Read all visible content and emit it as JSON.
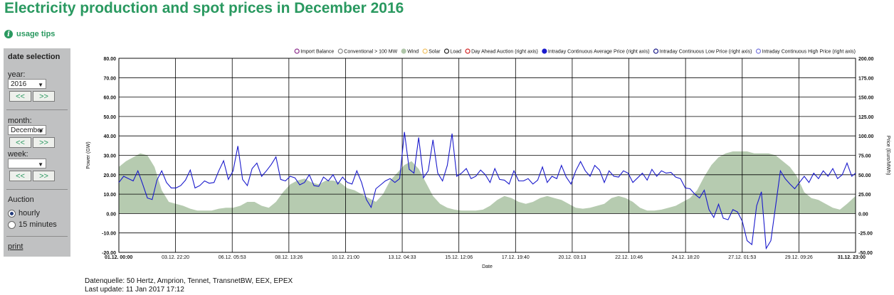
{
  "page": {
    "title": "Electricity production and spot prices in December 2016",
    "usage_tips": "usage tips",
    "footer_source": "Datenquelle: 50 Hertz, Amprion, Tennet, TransnetBW, EEX, EPEX",
    "footer_update": "Last update: 11 Jan 2017 17:12"
  },
  "sidebar": {
    "heading": "date selection",
    "year_label": "year:",
    "year_value": "2016",
    "month_label": "month:",
    "month_value": "December",
    "week_label": "week:",
    "week_value": "",
    "prev_label": "<<",
    "next_label": ">>",
    "auction_label": "Auction",
    "hourly_label": "hourly",
    "quarter_label": "15 minutes",
    "print_label": "print"
  },
  "chart_data": {
    "type": "area",
    "xlabel": "Date",
    "ylabel_left": "Power (GW)",
    "ylabel_right": "Price (Euro/MWh)",
    "ylim_left": [
      -20,
      80
    ],
    "ylim_right": [
      -50,
      200
    ],
    "left_ticks": [
      "80.00",
      "70.00",
      "60.00",
      "50.00",
      "40.00",
      "30.00",
      "20.00",
      "10.00",
      "0.00",
      "-10.00",
      "-20.00"
    ],
    "right_ticks": [
      "200.00",
      "175.00",
      "150.00",
      "125.00",
      "100.00",
      "75.00",
      "50.00",
      "25.00",
      "0.00",
      "-25.00",
      "-50.00"
    ],
    "x_tick_labels": [
      "01.12. 00:00",
      "03.12. 22:20",
      "06.12. 05:53",
      "08.12. 13:26",
      "10.12. 21:00",
      "13.12. 04:33",
      "15.12. 12:06",
      "17.12. 19:40",
      "20.12. 03:13",
      "22.12. 10:46",
      "24.12. 18:20",
      "27.12. 01:53",
      "29.12. 09:26",
      "31.12. 23:00"
    ],
    "x_range": [
      "01.12. 00:00",
      "31.12. 23:00"
    ],
    "grid": true,
    "legend_position": "top",
    "legend": [
      {
        "name": "Import Balance",
        "color": "#8b2b8b",
        "filled": false
      },
      {
        "name": "Conventional > 100 MW",
        "color": "#888888",
        "filled": false
      },
      {
        "name": "Wind",
        "color": "#aec5a8",
        "filled": true
      },
      {
        "name": "Solar",
        "color": "#f0c060",
        "filled": false
      },
      {
        "name": "Load",
        "color": "#222222",
        "filled": false
      },
      {
        "name": "Day Ahead Auction (right axis)",
        "color": "#d22222",
        "filled": false
      },
      {
        "name": "Intraday Continuous Average Price (right axis)",
        "color": "#1a1acc",
        "filled": true
      },
      {
        "name": "Intraday Continuous Low Price (right axis)",
        "color": "#1a1a88",
        "filled": false
      },
      {
        "name": "Intraday Continuous High Price (right axis)",
        "color": "#7777dd",
        "filled": false
      }
    ],
    "series": [
      {
        "name": "Wind",
        "axis": "left",
        "unit": "GW",
        "color": "#b6cbb0",
        "x_days": [
          0,
          0.3,
          0.6,
          0.9,
          1.2,
          1.5,
          1.8,
          2.1,
          2.4,
          2.7,
          3.0,
          3.3,
          3.6,
          3.9,
          4.2,
          4.5,
          4.8,
          5.1,
          5.4,
          5.7,
          6.0,
          6.3,
          6.6,
          6.9,
          7.2,
          7.5,
          7.8,
          8.1,
          8.4,
          8.7,
          9.0,
          9.3,
          9.6,
          9.9,
          10.2,
          10.5,
          10.8,
          11.1,
          11.4,
          11.7,
          12.0,
          12.3,
          12.6,
          12.9,
          13.2,
          13.5,
          13.8,
          14.1,
          14.4,
          14.7,
          15.0,
          15.3,
          15.6,
          15.9,
          16.2,
          16.5,
          16.8,
          17.1,
          17.4,
          17.7,
          18.0,
          18.3,
          18.6,
          18.9,
          19.2,
          19.5,
          19.8,
          20.1,
          20.4,
          20.7,
          21.0,
          21.3,
          21.6,
          21.9,
          22.2,
          22.5,
          22.8,
          23.1,
          23.4,
          23.7,
          24.0,
          24.3,
          24.6,
          24.9,
          25.2,
          25.5,
          25.8,
          26.1,
          26.4,
          26.7,
          27.0,
          27.3,
          27.6,
          27.9,
          28.2,
          28.5,
          28.8,
          29.1,
          29.4,
          29.7,
          30.0,
          30.3,
          30.6,
          30.958
        ],
        "values": [
          24,
          27,
          29,
          31,
          30,
          24,
          12,
          6,
          5,
          4,
          2.5,
          1.5,
          1.5,
          1.5,
          2.5,
          3,
          3,
          4,
          6,
          6,
          4,
          3,
          6,
          11,
          15,
          17,
          18,
          16,
          15,
          17,
          17,
          16,
          13,
          12,
          10,
          8,
          6,
          10,
          17,
          21,
          25,
          27,
          23,
          16,
          9,
          5,
          3,
          2,
          1.5,
          1.5,
          1.5,
          2,
          4,
          7,
          9,
          8,
          6,
          5,
          6,
          8,
          9,
          8,
          7,
          5,
          3,
          2.5,
          3,
          4,
          5,
          8,
          9,
          8,
          6,
          3,
          1.5,
          1.5,
          2,
          3,
          4,
          6,
          8,
          12,
          19,
          25,
          29,
          31,
          32,
          32,
          32,
          31,
          31,
          31,
          30,
          27,
          24,
          19,
          11,
          8,
          7,
          5,
          3,
          2,
          5,
          9
        ]
      },
      {
        "name": "Intraday Continuous Average Price (right axis)",
        "axis": "right",
        "unit": "Euro/MWh",
        "color": "#1a1acc",
        "x_days": [
          0,
          0.2,
          0.4,
          0.6,
          0.8,
          1.0,
          1.2,
          1.4,
          1.6,
          1.8,
          2.0,
          2.2,
          2.4,
          2.6,
          2.8,
          3.0,
          3.2,
          3.4,
          3.6,
          3.8,
          4.0,
          4.2,
          4.4,
          4.6,
          4.8,
          5.0,
          5.2,
          5.4,
          5.6,
          5.8,
          6.0,
          6.2,
          6.4,
          6.6,
          6.8,
          7.0,
          7.2,
          7.4,
          7.6,
          7.8,
          8.0,
          8.2,
          8.4,
          8.6,
          8.8,
          9.0,
          9.2,
          9.4,
          9.6,
          9.8,
          10.0,
          10.2,
          10.4,
          10.6,
          10.8,
          11.0,
          11.2,
          11.4,
          11.6,
          11.8,
          12.0,
          12.2,
          12.4,
          12.6,
          12.8,
          13.0,
          13.2,
          13.4,
          13.6,
          13.8,
          14.0,
          14.2,
          14.4,
          14.6,
          14.8,
          15.0,
          15.2,
          15.4,
          15.6,
          15.8,
          16.0,
          16.2,
          16.4,
          16.6,
          16.8,
          17.0,
          17.2,
          17.4,
          17.6,
          17.8,
          18.0,
          18.2,
          18.4,
          18.6,
          18.8,
          19.0,
          19.2,
          19.4,
          19.6,
          19.8,
          20.0,
          20.2,
          20.4,
          20.6,
          20.8,
          21.0,
          21.2,
          21.4,
          21.6,
          21.8,
          22.0,
          22.2,
          22.4,
          22.6,
          22.8,
          23.0,
          23.2,
          23.4,
          23.6,
          23.8,
          24.0,
          24.2,
          24.4,
          24.6,
          24.8,
          25.0,
          25.2,
          25.4,
          25.6,
          25.8,
          26.0,
          26.2,
          26.4,
          26.6,
          26.8,
          27.0,
          27.2,
          27.4,
          27.6,
          27.8,
          28.0,
          28.2,
          28.4,
          28.6,
          28.8,
          29.0,
          29.2,
          29.4,
          29.6,
          29.8,
          30.0,
          30.2,
          30.4,
          30.6,
          30.8,
          30.958
        ],
        "values": [
          40,
          48,
          45,
          42,
          55,
          38,
          20,
          18,
          43,
          55,
          40,
          33,
          33,
          36,
          43,
          56,
          33,
          36,
          42,
          39,
          40,
          55,
          68,
          44,
          55,
          87,
          44,
          36,
          58,
          65,
          48,
          55,
          63,
          73,
          44,
          42,
          48,
          46,
          37,
          40,
          50,
          36,
          35,
          47,
          42,
          50,
          38,
          47,
          40,
          38,
          55,
          40,
          18,
          8,
          32,
          37,
          42,
          45,
          40,
          45,
          105,
          57,
          52,
          98,
          46,
          55,
          95,
          52,
          42,
          62,
          103,
          48,
          52,
          58,
          45,
          48,
          56,
          50,
          40,
          58,
          44,
          43,
          38,
          55,
          42,
          42,
          45,
          38,
          43,
          60,
          40,
          48,
          45,
          62,
          47,
          38,
          55,
          67,
          55,
          48,
          62,
          56,
          40,
          55,
          48,
          47,
          55,
          52,
          40,
          46,
          52,
          43,
          57,
          48,
          55,
          52,
          53,
          47,
          45,
          33,
          32,
          25,
          20,
          30,
          5,
          -5,
          12,
          -6,
          -8,
          5,
          2,
          -10,
          -35,
          -40,
          10,
          28,
          -45,
          -35,
          10,
          55,
          45,
          38,
          32,
          40,
          48,
          40,
          52,
          45,
          55,
          48,
          58,
          45,
          50,
          65,
          48,
          52
        ]
      }
    ]
  }
}
